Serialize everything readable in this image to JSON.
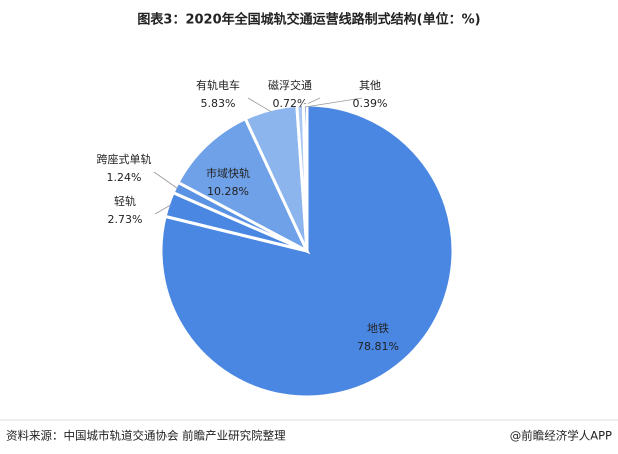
{
  "chart_data": {
    "type": "pie",
    "title": "图表3：2020年全国城轨交通运营线路制式结构(单位：%)",
    "categories": [
      "地铁",
      "轻轨",
      "跨座式单轨",
      "市域快轨",
      "有轨电车",
      "磁浮交通",
      "其他"
    ],
    "values": [
      78.81,
      2.73,
      1.24,
      10.28,
      5.83,
      0.72,
      0.39
    ],
    "value_labels": [
      "78.81%",
      "2.73%",
      "1.24%",
      "10.28%",
      "5.83%",
      "0.72%",
      "0.39%"
    ],
    "colors": [
      "#4a87e2",
      "#4a87e2",
      "#5b93e4",
      "#6fa1e8",
      "#8cb5ee",
      "#a9c7f2",
      "#3d73c8"
    ],
    "source": "资料来源：中国城市轨道交通协会 前瞻产业研究院整理",
    "credit": "@前瞻经济学人APP"
  }
}
